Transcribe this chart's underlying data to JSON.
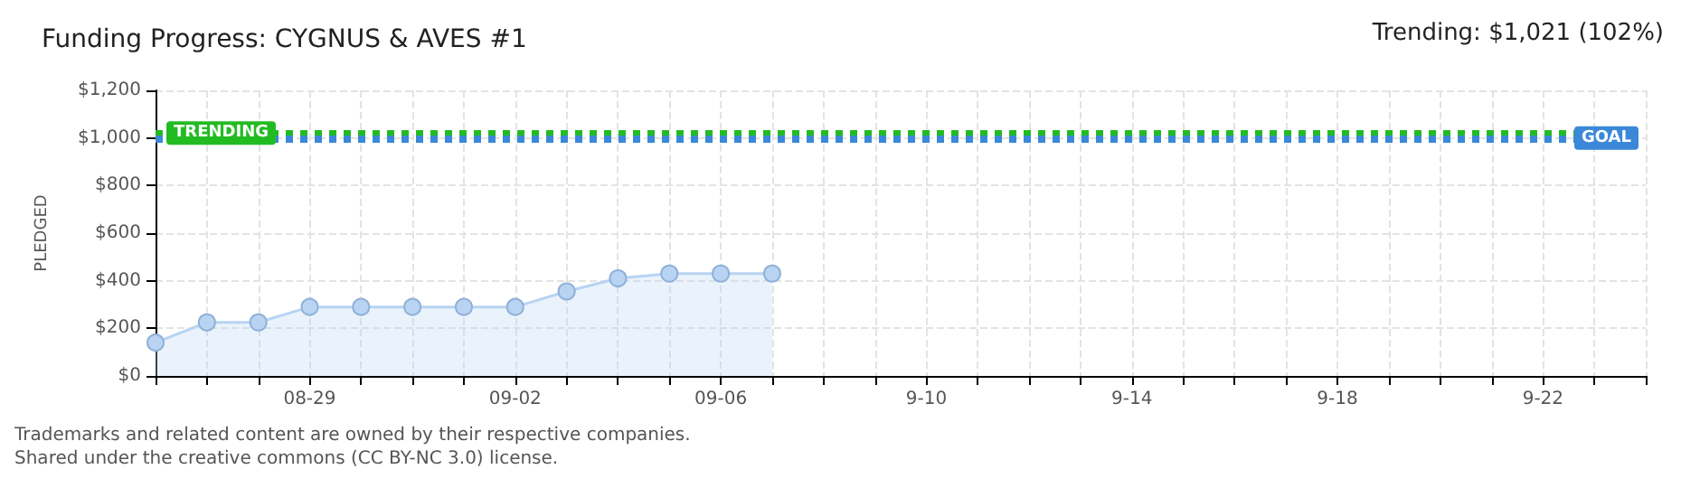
{
  "chart_data": {
    "type": "area",
    "title": "Funding Progress: CYGNUS & AVES #1",
    "ylabel": "PLEDGED",
    "annotations": [
      "Trending: $1,021 (102%)",
      "Trademarks and related content are owned by their respective companies.",
      "Shared under the creative commons (CC BY-NC 3.0) license."
    ],
    "x": [
      "--08-26",
      "--08-27",
      "--08-28",
      "--08-29",
      "--08-30",
      "--08-31",
      "--09-01",
      "--09-02",
      "--09-03",
      "--09-04",
      "--09-05",
      "--09-06",
      "--09-07"
    ],
    "series": [
      {
        "color": "#b8d4f2",
        "values": [
          140,
          225,
          225,
          290,
          290,
          290,
          290,
          290,
          355,
          410,
          430,
          430,
          430
        ]
      }
    ],
    "xlim": [
      "--08-26",
      "--09-24"
    ],
    "xticks": [
      {
        "value": "--08-26",
        "label": null
      },
      {
        "value": "--08-27",
        "label": null
      },
      {
        "value": "--08-28",
        "label": null
      },
      {
        "value": "--08-29",
        "label": "08-29"
      },
      {
        "value": "--08-30",
        "label": null
      },
      {
        "value": "--08-31",
        "label": null
      },
      {
        "value": "--09-01",
        "label": null
      },
      {
        "value": "--09-02",
        "label": "09-02"
      },
      {
        "value": "--09-03",
        "label": null
      },
      {
        "value": "--09-04",
        "label": null
      },
      {
        "value": "--09-05",
        "label": null
      },
      {
        "value": "--09-06",
        "label": "09-06"
      },
      {
        "value": "--09-07",
        "label": null
      },
      {
        "value": "--09-08",
        "label": null
      },
      {
        "value": "--09-09",
        "label": null
      },
      {
        "value": "--09-10",
        "label": "9-10"
      },
      {
        "value": "--09-11",
        "label": null
      },
      {
        "value": "--09-12",
        "label": null
      },
      {
        "value": "--09-13",
        "label": null
      },
      {
        "value": "--09-14",
        "label": "9-14"
      },
      {
        "value": "--09-15",
        "label": null
      },
      {
        "value": "--09-16",
        "label": null
      },
      {
        "value": "--09-17",
        "label": null
      },
      {
        "value": "--09-18",
        "label": "9-18"
      },
      {
        "value": "--09-19",
        "label": null
      },
      {
        "value": "--09-20",
        "label": null
      },
      {
        "value": "--09-21",
        "label": null
      },
      {
        "value": "--09-22",
        "label": "9-22"
      },
      {
        "value": "--09-23",
        "label": null
      },
      {
        "value": "--09-24",
        "label": null
      }
    ],
    "ylim": [
      0,
      1200
    ],
    "yticks": [
      {
        "value": 0,
        "label": "$0"
      },
      {
        "value": 200,
        "label": "$200"
      },
      {
        "value": 400,
        "label": "$400"
      },
      {
        "value": 600,
        "label": "$600"
      },
      {
        "value": 800,
        "label": "$800"
      },
      {
        "value": 1000,
        "label": "$1,000"
      },
      {
        "value": 1200,
        "label": "$1,200"
      }
    ],
    "ref_lines": [
      {
        "axis": "y",
        "value": 1021,
        "label": "TRENDING",
        "color": "#22bb22",
        "line_style": "dotted"
      },
      {
        "axis": "y",
        "value": 1000,
        "label": "GOAL",
        "color": "#3b88d8",
        "line_style": "dotted"
      }
    ],
    "grid": true,
    "marker": "circle"
  }
}
